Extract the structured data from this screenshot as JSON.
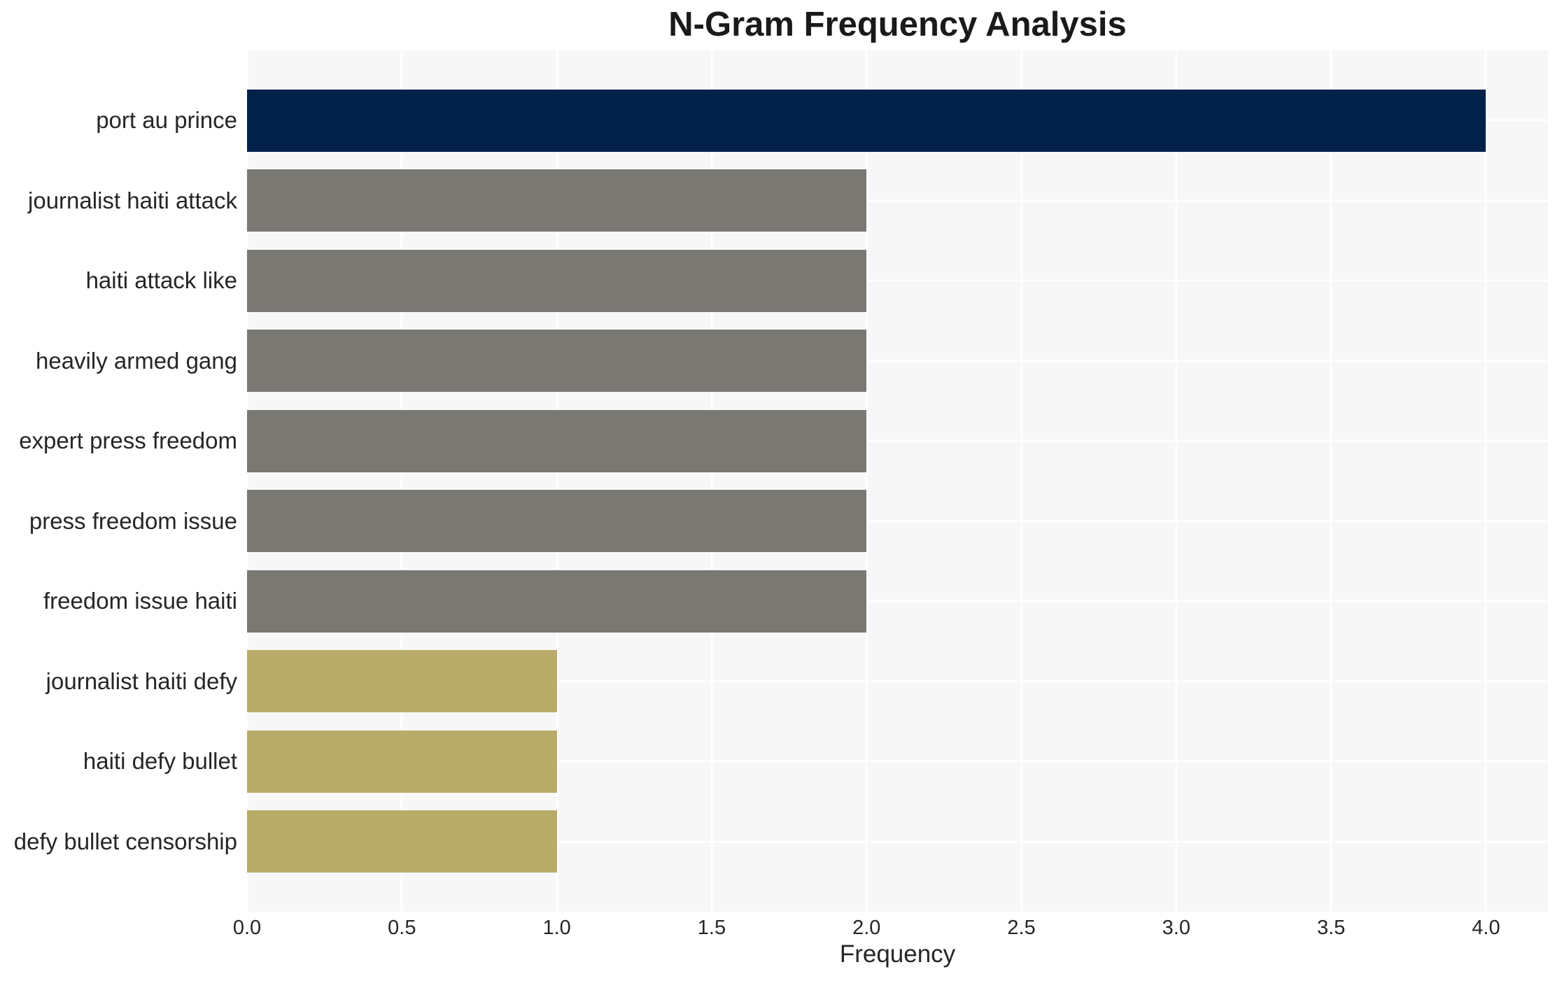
{
  "chart_data": {
    "type": "bar",
    "orientation": "horizontal",
    "title": "N-Gram Frequency Analysis",
    "xlabel": "Frequency",
    "ylabel": "",
    "categories": [
      "port au prince",
      "journalist haiti attack",
      "haiti attack like",
      "heavily armed gang",
      "expert press freedom",
      "press freedom issue",
      "freedom issue haiti",
      "journalist haiti defy",
      "haiti defy bullet",
      "defy bullet censorship"
    ],
    "values": [
      4,
      2,
      2,
      2,
      2,
      2,
      2,
      1,
      1,
      1
    ],
    "bar_colors": [
      "#02214a",
      "#7a7873",
      "#7a7873",
      "#7a7873",
      "#7a7873",
      "#7a7873",
      "#7a7873",
      "#b9ab6a",
      "#b9ab6a",
      "#b9ab6a"
    ],
    "xticks": [
      "0.0",
      "0.5",
      "1.0",
      "1.5",
      "2.0",
      "2.5",
      "3.0",
      "3.5",
      "4.0"
    ],
    "xtick_values": [
      0,
      0.5,
      1,
      1.5,
      2,
      2.5,
      3,
      3.5,
      4
    ],
    "xlim": [
      0,
      4.2
    ],
    "grid": true,
    "legend": false,
    "plot_background": "#f7f7f7",
    "gridline_color": "#ffffff",
    "text_color": "#262626"
  }
}
